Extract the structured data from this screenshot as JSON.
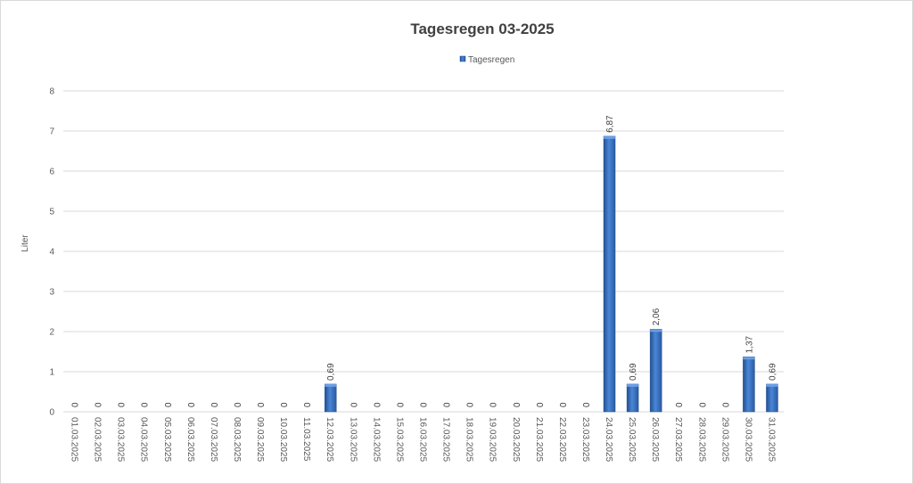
{
  "chart_data": {
    "type": "bar",
    "title": "Tagesregen 03-2025",
    "ylabel": "Liter",
    "xlabel": "",
    "ylim": [
      0,
      8
    ],
    "yticks": [
      0,
      1,
      2,
      3,
      4,
      5,
      6,
      7,
      8
    ],
    "grid": true,
    "legend_position": "top-center",
    "categories": [
      "01.03.2025",
      "02.03.2025",
      "03.03.2025",
      "04.03.2025",
      "05.03.2025",
      "06.03.2025",
      "07.03.2025",
      "08.03.2025",
      "09.03.2025",
      "10.03.2025",
      "11.03.2025",
      "12.03.2025",
      "13.03.2025",
      "14.03.2025",
      "15.03.2025",
      "16.03.2025",
      "17.03.2025",
      "18.03.2025",
      "19.03.2025",
      "20.03.2025",
      "21.03.2025",
      "22.03.2025",
      "23.03.2025",
      "24.03.2025",
      "25.03.2025",
      "26.03.2025",
      "27.03.2025",
      "28.03.2025",
      "29.03.2025",
      "30.03.2025",
      "31.03.2025"
    ],
    "series": [
      {
        "name": "Tagesregen",
        "color": "#3a6fc4",
        "values": [
          0,
          0,
          0,
          0,
          0,
          0,
          0,
          0,
          0,
          0,
          0,
          0.69,
          0,
          0,
          0,
          0,
          0,
          0,
          0,
          0,
          0,
          0,
          0,
          6.87,
          0.69,
          2.06,
          0,
          0,
          0,
          1.37,
          0.69
        ],
        "labels": [
          "0",
          "0",
          "0",
          "0",
          "0",
          "0",
          "0",
          "0",
          "0",
          "0",
          "0",
          "0,69",
          "0",
          "0",
          "0",
          "0",
          "0",
          "0",
          "0",
          "0",
          "0",
          "0",
          "0",
          "6,87",
          "0,69",
          "2,06",
          "0",
          "0",
          "0",
          "1,37",
          "0,69"
        ]
      }
    ]
  }
}
